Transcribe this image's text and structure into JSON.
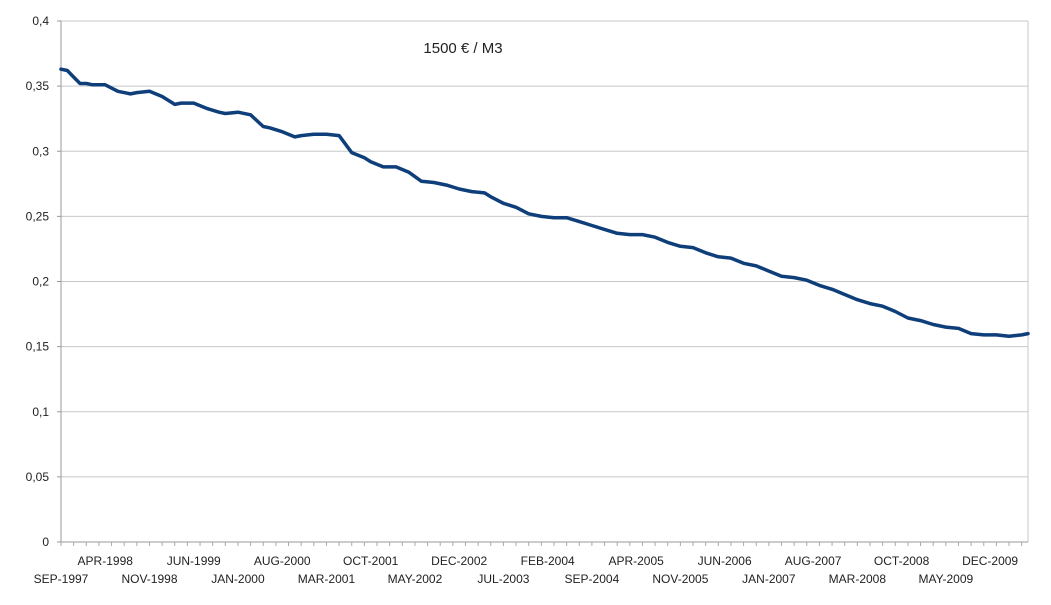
{
  "chart_data": {
    "type": "line",
    "title": "1500 € / M3",
    "xlabel": "",
    "ylabel": "",
    "ylim": [
      0,
      0.4
    ],
    "grid": true,
    "legend": "none",
    "line_color": "#0f3f7a",
    "y_ticks": [
      "0",
      "0,05",
      "0,1",
      "0,15",
      "0,2",
      "0,25",
      "0,3",
      "0,35",
      "0,4"
    ],
    "x_ticks_upper": [
      "APR-1998",
      "JUN-1999",
      "AUG-2000",
      "OCT-2001",
      "DEC-2002",
      "FEB-2004",
      "APR-2005",
      "JUN-2006",
      "AUG-2007",
      "OCT-2008",
      "DEC-2009"
    ],
    "x_ticks_lower": [
      "SEP-1997",
      "NOV-1998",
      "JAN-2000",
      "MAR-2001",
      "MAY-2002",
      "JUL-2003",
      "SEP-2004",
      "NOV-2005",
      "JAN-2007",
      "MAR-2008",
      "MAY-2009"
    ],
    "x_range": [
      "1997-09",
      "2010-06"
    ],
    "series": [
      {
        "x": [
          "1997-09",
          "1997-10",
          "1997-11",
          "1997-12",
          "1998-01",
          "1998-02",
          "1998-03",
          "1998-04",
          "1998-06",
          "1998-08",
          "1998-09",
          "1998-11",
          "1999-01",
          "1999-03",
          "1999-04",
          "1999-06",
          "1999-08",
          "1999-10",
          "1999-11",
          "2000-01",
          "2000-03",
          "2000-05",
          "2000-06",
          "2000-08",
          "2000-10",
          "2000-11",
          "2001-01",
          "2001-03",
          "2001-05",
          "2001-07",
          "2001-09",
          "2001-10",
          "2001-12",
          "2002-02",
          "2002-04",
          "2002-06",
          "2002-08",
          "2002-10",
          "2002-12",
          "2003-02",
          "2003-04",
          "2003-05",
          "2003-07",
          "2003-09",
          "2003-11",
          "2004-01",
          "2004-03",
          "2004-05",
          "2004-07",
          "2004-09",
          "2004-11",
          "2005-01",
          "2005-03",
          "2005-05",
          "2005-07",
          "2005-09",
          "2005-11",
          "2006-01",
          "2006-03",
          "2006-05",
          "2006-07",
          "2006-09",
          "2006-11",
          "2007-01",
          "2007-03",
          "2007-05",
          "2007-07",
          "2007-09",
          "2007-11",
          "2008-01",
          "2008-03",
          "2008-05",
          "2008-07",
          "2008-09",
          "2008-11",
          "2009-01",
          "2009-03",
          "2009-05",
          "2009-07",
          "2009-09",
          "2009-11",
          "2010-01",
          "2010-03",
          "2010-05",
          "2010-06"
        ],
        "values": [
          0.363,
          0.362,
          0.357,
          0.352,
          0.352,
          0.351,
          0.351,
          0.351,
          0.346,
          0.344,
          0.345,
          0.346,
          0.342,
          0.336,
          0.337,
          0.337,
          0.333,
          0.33,
          0.329,
          0.33,
          0.328,
          0.319,
          0.318,
          0.315,
          0.311,
          0.312,
          0.313,
          0.313,
          0.312,
          0.299,
          0.295,
          0.292,
          0.288,
          0.288,
          0.284,
          0.277,
          0.276,
          0.274,
          0.271,
          0.269,
          0.268,
          0.265,
          0.26,
          0.257,
          0.252,
          0.25,
          0.249,
          0.249,
          0.246,
          0.243,
          0.24,
          0.237,
          0.236,
          0.236,
          0.234,
          0.23,
          0.227,
          0.226,
          0.222,
          0.219,
          0.218,
          0.214,
          0.212,
          0.208,
          0.204,
          0.203,
          0.201,
          0.197,
          0.194,
          0.19,
          0.186,
          0.183,
          0.181,
          0.177,
          0.172,
          0.17,
          0.167,
          0.165,
          0.164,
          0.16,
          0.159,
          0.159,
          0.158,
          0.159,
          0.16
        ]
      }
    ]
  }
}
